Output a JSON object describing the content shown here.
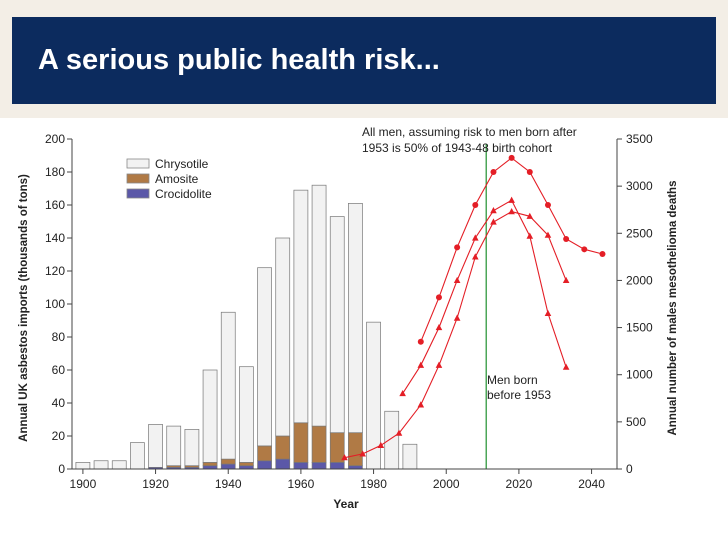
{
  "slide": {
    "title": "A serious public health risk...",
    "header_bg": "#f3eee6",
    "title_bar_color": "#0c2b5e"
  },
  "chart_data": {
    "type": "bar",
    "xlabel": "Year",
    "ylabel_left": "Annual UK asbestos imports (thousands of tons)",
    "ylabel_right": "Annual number of males mesothelioma deaths",
    "ylim_left": [
      0,
      200
    ],
    "ylim_right": [
      0,
      3500
    ],
    "xlim": [
      1897,
      2047
    ],
    "y_ticks_left": [
      0,
      20,
      40,
      60,
      80,
      100,
      120,
      140,
      160,
      180,
      200
    ],
    "y_ticks_right": [
      0,
      500,
      1000,
      1500,
      2000,
      2500,
      3000,
      3500
    ],
    "x_ticks": [
      1900,
      1920,
      1940,
      1960,
      1980,
      2000,
      2020,
      2040
    ],
    "legend_position": "top-left",
    "imports": {
      "years": [
        1900,
        1905,
        1910,
        1915,
        1920,
        1925,
        1930,
        1935,
        1940,
        1945,
        1950,
        1955,
        1960,
        1965,
        1970,
        1975,
        1980,
        1985,
        1990
      ],
      "series": [
        {
          "name": "Chrysotile",
          "color": "#f2f2f2",
          "values": [
            4,
            5,
            5,
            16,
            26,
            24,
            22,
            56,
            89,
            58,
            108,
            120,
            141,
            146,
            131,
            139,
            89,
            35,
            15
          ]
        },
        {
          "name": "Amosite",
          "color": "#b07a45",
          "values": [
            0,
            0,
            0,
            0,
            0,
            1,
            1,
            2,
            3,
            2,
            9,
            14,
            24,
            22,
            18,
            20,
            0,
            0,
            0
          ]
        },
        {
          "name": "Crocidolite",
          "color": "#5b58a8",
          "values": [
            0,
            0,
            0,
            0,
            1,
            1,
            1,
            2,
            3,
            2,
            5,
            6,
            4,
            4,
            4,
            2,
            0,
            0,
            0
          ]
        }
      ]
    },
    "death_series": [
      {
        "marker": "triangle",
        "color": "#e41e26",
        "x": [
          1972,
          1977,
          1982,
          1987,
          1993,
          1998,
          2003,
          2008,
          2013,
          2018,
          2023,
          2028,
          2033
        ],
        "y": [
          120,
          160,
          250,
          380,
          680,
          1100,
          1600,
          2250,
          2620,
          2730,
          2680,
          2480,
          2000
        ]
      },
      {
        "marker": "triangle",
        "color": "#e41e26",
        "x": [
          1988,
          1993,
          1998,
          2003,
          2008,
          2013,
          2018,
          2023,
          2028,
          2033
        ],
        "y": [
          800,
          1100,
          1500,
          2000,
          2450,
          2740,
          2850,
          2470,
          1650,
          1080
        ]
      },
      {
        "marker": "circle",
        "color": "#e41e26",
        "x": [
          1993,
          1998,
          2003,
          2008,
          2013,
          2018,
          2023,
          2028,
          2033,
          2038,
          2043
        ],
        "y": [
          1350,
          1820,
          2350,
          2800,
          3150,
          3300,
          3150,
          2800,
          2440,
          2330,
          2280
        ]
      }
    ],
    "annotations": {
      "cohort_line1": "All men, assuming risk to men born after",
      "cohort_line2": "1953 is 50% of 1943-48 birth cohort",
      "before_line1": "Men born",
      "before_line2": "before 1953"
    },
    "vertical_line": {
      "x": 2011,
      "color": "#1f8f2e"
    }
  }
}
